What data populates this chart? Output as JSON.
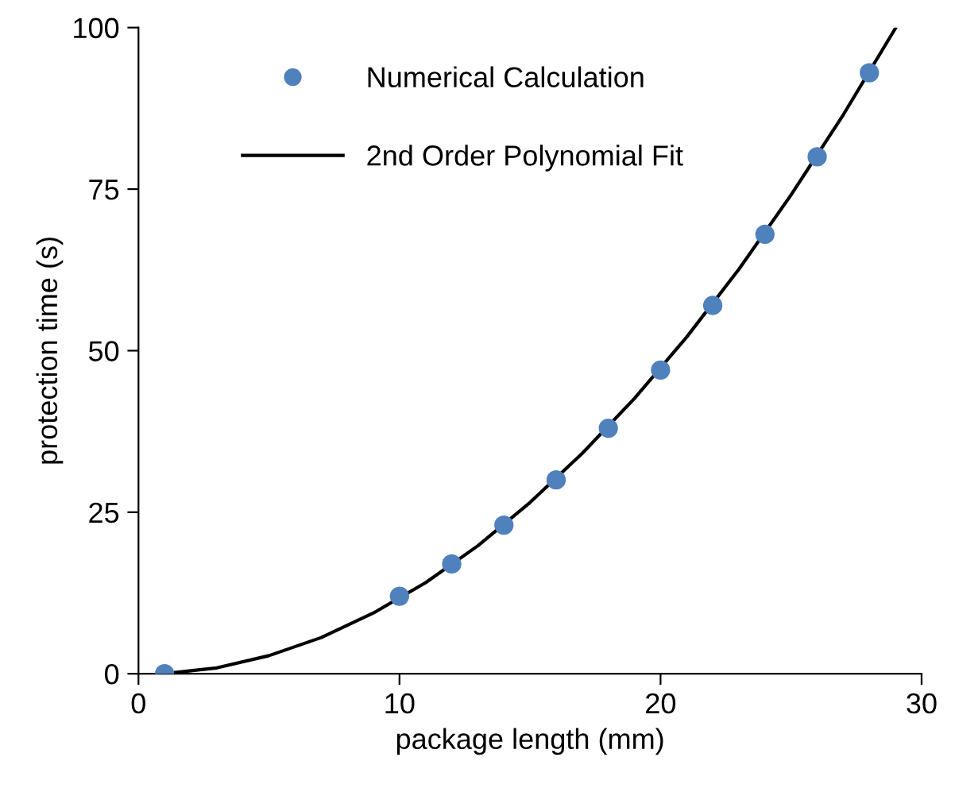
{
  "chart_data": {
    "type": "scatter",
    "xlabel": "package length (mm)",
    "ylabel": "protection time (s)",
    "xlim": [
      0,
      30
    ],
    "xticks": [
      0,
      10,
      20,
      30
    ],
    "ylim": [
      0,
      100
    ],
    "yticks": [
      0,
      25,
      50,
      75,
      100
    ],
    "grid": false,
    "legend": "top left",
    "series": [
      {
        "name": "Numerical Calculation",
        "marker": "circle",
        "color": "#4f81bd",
        "x": [
          1,
          10,
          12,
          14,
          16,
          18,
          20,
          22,
          24,
          26,
          28
        ],
        "values": [
          0,
          12,
          17,
          23,
          30,
          38,
          47,
          57,
          68,
          80,
          93
        ]
      },
      {
        "name": "2nd Order Polynomial Fit",
        "type": "line",
        "color": "#000000",
        "line_style": "solid",
        "x": [
          1,
          3,
          5,
          7,
          9,
          11,
          13,
          15,
          17,
          19,
          21,
          23,
          25,
          27,
          29
        ],
        "values": [
          0,
          0.9,
          2.8,
          5.6,
          9.4,
          14.1,
          19.8,
          26.5,
          34.1,
          42.6,
          52.1,
          62.6,
          74.1,
          86.5,
          99.9
        ]
      }
    ]
  }
}
